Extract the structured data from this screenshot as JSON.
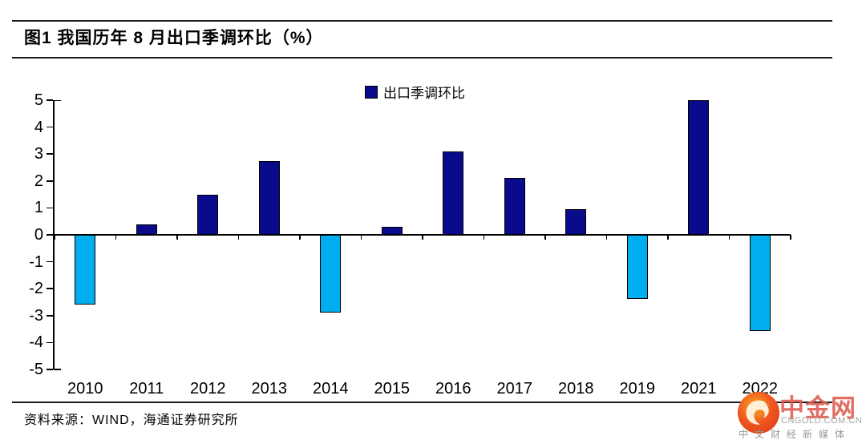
{
  "header": {
    "title": "图1  我国历年 8 月出口季调环比（%）"
  },
  "legend": {
    "label": "出口季调环比"
  },
  "chart_data": {
    "type": "bar",
    "title": "图1  我国历年 8 月出口季调环比（%）",
    "categories": [
      "2010",
      "2011",
      "2012",
      "2013",
      "2014",
      "2015",
      "2016",
      "2017",
      "2018",
      "2019",
      "2021",
      "2022"
    ],
    "values": [
      -2.6,
      0.4,
      1.5,
      2.75,
      -2.9,
      0.3,
      3.1,
      2.1,
      0.95,
      -2.4,
      5,
      -3.6
    ],
    "series_name": "出口季调环比",
    "xlabel": "",
    "ylabel": "",
    "ylim": [
      -5,
      5
    ],
    "ytick_step": 1,
    "grid": false,
    "legend_position": "top-center",
    "colors": {
      "positive": "#0A0A8C",
      "negative": "#00AEEF",
      "bar_border": "#000000"
    }
  },
  "footer": {
    "source": "资料来源：WIND，海通证券研究所"
  },
  "watermark": {
    "brand": "中金网",
    "domain": "CNGOLD.COM.CN",
    "tagline": "中文财经新媒体",
    "brand_color": "#DD5B4E",
    "logo": "cngold-flame-logo"
  }
}
